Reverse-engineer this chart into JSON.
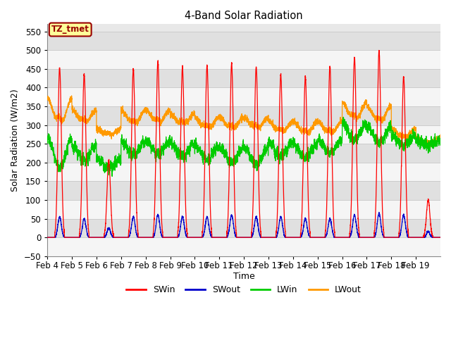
{
  "title": "4-Band Solar Radiation",
  "xlabel": "Time",
  "ylabel": "Solar Radiation (W/m2)",
  "ylim": [
    -50,
    570
  ],
  "yticks": [
    -50,
    0,
    50,
    100,
    150,
    200,
    250,
    300,
    350,
    400,
    450,
    500,
    550
  ],
  "x_tick_labels": [
    "Feb 4",
    "Feb 5",
    "Feb 6",
    "Feb 7",
    "Feb 8",
    "Feb 9",
    "Feb 10",
    "Feb 11",
    "Feb 12",
    "Feb 13",
    "Feb 14",
    "Feb 15",
    "Feb 16",
    "Feb 17",
    "Feb 18",
    "Feb 19"
  ],
  "annotation_text": "TZ_tmet",
  "annotation_bg": "#ffff99",
  "annotation_fg": "#990000",
  "colors": {
    "SWin": "#ff0000",
    "SWout": "#0000cc",
    "LWin": "#00cc00",
    "LWout": "#ff9900"
  },
  "n_days": 16,
  "points_per_day": 288,
  "background_color": "#ffffff",
  "grid_color": "#cccccc",
  "sw_peaks": [
    455,
    435,
    205,
    450,
    470,
    455,
    460,
    465,
    455,
    435,
    430,
    455,
    480,
    500,
    430,
    100
  ],
  "swout_peaks": [
    55,
    50,
    25,
    55,
    60,
    55,
    55,
    60,
    55,
    55,
    50,
    50,
    60,
    65,
    60,
    15
  ],
  "lwout_day": [
    370,
    340,
    290,
    340,
    340,
    330,
    320,
    320,
    320,
    310,
    310,
    310,
    360,
    350,
    290,
    265
  ],
  "lwout_night": [
    290,
    300,
    270,
    295,
    300,
    295,
    285,
    285,
    285,
    275,
    270,
    270,
    305,
    300,
    260,
    245
  ],
  "lwin_day": [
    265,
    245,
    210,
    255,
    258,
    252,
    245,
    240,
    240,
    255,
    250,
    260,
    305,
    295,
    270,
    260
  ],
  "lwin_night": [
    185,
    205,
    185,
    220,
    222,
    215,
    208,
    200,
    195,
    215,
    215,
    225,
    260,
    255,
    245,
    245
  ]
}
